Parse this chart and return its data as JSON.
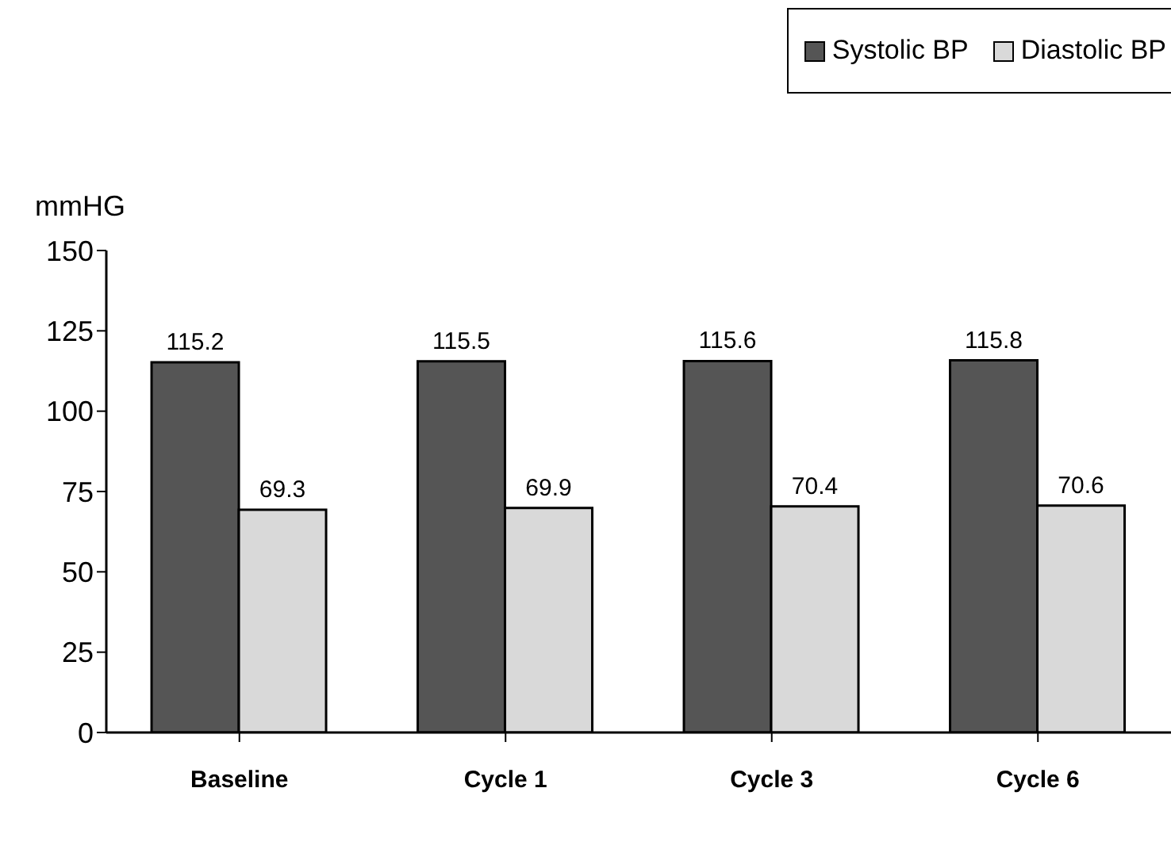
{
  "chart_data": {
    "type": "bar",
    "ylabel": "mmHG",
    "categories": [
      "Baseline",
      "Cycle 1",
      "Cycle 3",
      "Cycle 6"
    ],
    "series": [
      {
        "name": "Systolic BP",
        "color": "#555555",
        "values": [
          115.2,
          115.5,
          115.6,
          115.8
        ]
      },
      {
        "name": "Diastolic BP",
        "color": "#d9d9d9",
        "values": [
          69.3,
          69.9,
          70.4,
          70.6
        ]
      }
    ],
    "ylim": [
      0,
      150
    ],
    "yticks": [
      0,
      25,
      50,
      75,
      100,
      125,
      150
    ],
    "data_labels": true,
    "grid": false,
    "legend": "top right"
  }
}
